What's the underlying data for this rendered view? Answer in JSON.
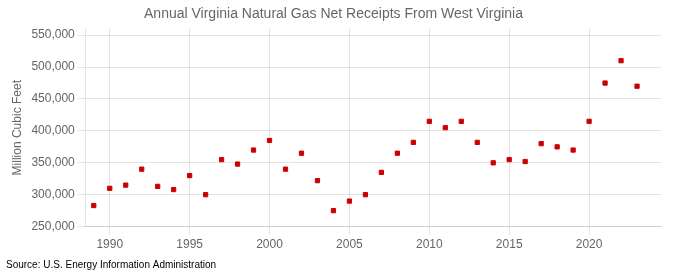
{
  "chart_data": {
    "type": "scatter",
    "title": "Annual Virginia Natural Gas Net Receipts From West Virginia",
    "ylabel": "Million Cubic Feet",
    "annotation": "Source: U.S. Energy Information Administration",
    "x": [
      1989,
      1990,
      1991,
      1992,
      1993,
      1994,
      1995,
      1996,
      1997,
      1998,
      1999,
      2000,
      2001,
      2002,
      2003,
      2004,
      2005,
      2006,
      2007,
      2008,
      2009,
      2010,
      2011,
      2012,
      2013,
      2014,
      2015,
      2016,
      2017,
      2018,
      2019,
      2020,
      2021,
      2022,
      2023
    ],
    "values": [
      283000,
      310000,
      315000,
      340000,
      313000,
      308000,
      330000,
      300000,
      355000,
      348000,
      370000,
      385000,
      340000,
      365000,
      322000,
      275000,
      290000,
      300000,
      335000,
      365000,
      382000,
      415000,
      405000,
      415000,
      382000,
      350000,
      355000,
      352000,
      380000,
      375000,
      370000,
      415000,
      475000,
      510000,
      470000
    ],
    "color": "#cc0000",
    "marker": "square",
    "xlim": [
      1988.5,
      2024.5
    ],
    "xticks": [
      1990,
      1995,
      2000,
      2005,
      2010,
      2015,
      2020
    ],
    "ylim": [
      250000,
      560000
    ],
    "yticks": [
      {
        "value": 250000,
        "label": "250,000"
      },
      {
        "value": 300000,
        "label": "300,000"
      },
      {
        "value": 350000,
        "label": "350,000"
      },
      {
        "value": 400000,
        "label": "400,000"
      },
      {
        "value": 450000,
        "label": "450,000"
      },
      {
        "value": 500000,
        "label": "500,000"
      },
      {
        "value": 550000,
        "label": "550,000"
      }
    ],
    "grid": true,
    "legend": false
  }
}
